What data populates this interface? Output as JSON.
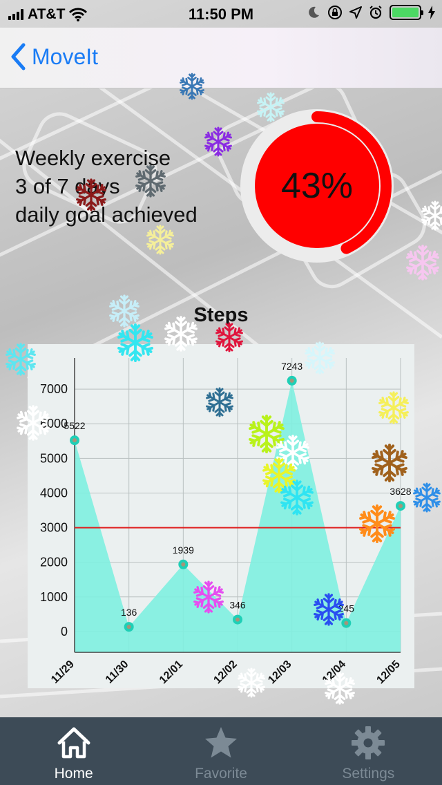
{
  "status_bar": {
    "carrier": "AT&T",
    "time": "11:50 PM",
    "battery_color": "#4cd964",
    "icons": [
      "signal-icon",
      "wifi-icon",
      "moon-icon",
      "orientation-lock-icon",
      "location-icon",
      "alarm-icon",
      "battery-icon",
      "charging-icon"
    ]
  },
  "nav": {
    "back_label": "MoveIt",
    "accent": "#1a7cf5"
  },
  "weekly": {
    "line1": "Weekly exercise",
    "line2": "3 of 7 days",
    "line3": "daily goal achieved",
    "percent_label": "43%",
    "progress": 0.43,
    "ring_color": "#ff0000"
  },
  "chart_title": "Steps",
  "chart_data": {
    "type": "area",
    "x": [
      "11/29",
      "11/30",
      "12/01",
      "12/02",
      "12/03",
      "12/04",
      "12/05"
    ],
    "values": [
      5522,
      136,
      1939,
      346,
      7243,
      245,
      3628
    ],
    "value_labels": [
      "5522",
      "136",
      "1939",
      "346",
      "7243",
      "245",
      "3628"
    ],
    "yticks": [
      0,
      1000,
      2000,
      3000,
      4000,
      5000,
      6000,
      7000
    ],
    "ylim": [
      -600,
      7900
    ],
    "goal_line": 3000,
    "grid": true,
    "fill_color": "#7ff0e0",
    "point_color": "#1fcfb6",
    "goal_color": "#e02020"
  },
  "tabs": [
    {
      "label": "Home",
      "icon": "home-icon",
      "active": true
    },
    {
      "label": "Favorite",
      "icon": "star-icon",
      "active": false
    },
    {
      "label": "Settings",
      "icon": "gear-icon",
      "active": false
    }
  ]
}
